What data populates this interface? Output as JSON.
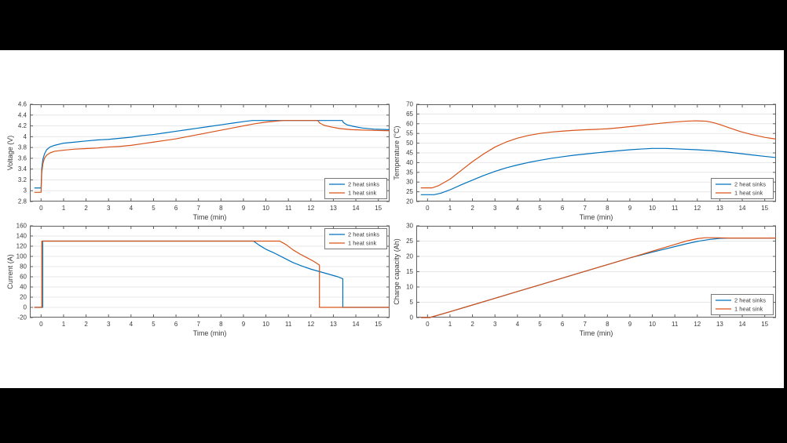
{
  "frame": {
    "background_color": "#000000",
    "canvas_color": "#ffffff"
  },
  "style": {
    "grid_color": "#e7e7e7",
    "axis_color": "#5f5f5f",
    "text_color": "#3a3a3a",
    "legend_border_color": "#777777"
  },
  "chart_data": [
    {
      "type": "line",
      "title": "",
      "xlabel": "Time (min)",
      "ylabel": "Voltage (V)",
      "xlim": [
        -0.5,
        15.5
      ],
      "ylim": [
        2.8,
        4.6
      ],
      "x_ticks": [
        0,
        1,
        2,
        3,
        4,
        5,
        6,
        7,
        8,
        9,
        10,
        11,
        12,
        13,
        14,
        15
      ],
      "y_ticks": [
        2.8,
        3,
        3.2,
        3.4,
        3.6,
        3.8,
        4,
        4.2,
        4.4,
        4.6
      ],
      "grid": "horizontal",
      "legend_position": "bottom-right",
      "series": [
        {
          "name": "2 heat sinks",
          "color": "#0072BD",
          "points": [
            [
              -0.3,
              3.05
            ],
            [
              0,
              3.05
            ],
            [
              0.03,
              3.42
            ],
            [
              0.08,
              3.58
            ],
            [
              0.15,
              3.68
            ],
            [
              0.25,
              3.76
            ],
            [
              0.4,
              3.81
            ],
            [
              0.6,
              3.84
            ],
            [
              1,
              3.88
            ],
            [
              1.5,
              3.9
            ],
            [
              2,
              3.92
            ],
            [
              2.5,
              3.94
            ],
            [
              3,
              3.95
            ],
            [
              3.5,
              3.97
            ],
            [
              4,
              3.99
            ],
            [
              4.5,
              4.02
            ],
            [
              5,
              4.04
            ],
            [
              5.5,
              4.07
            ],
            [
              6,
              4.1
            ],
            [
              6.5,
              4.13
            ],
            [
              7,
              4.16
            ],
            [
              7.5,
              4.19
            ],
            [
              8,
              4.22
            ],
            [
              8.5,
              4.25
            ],
            [
              9,
              4.28
            ],
            [
              9.4,
              4.3
            ],
            [
              13.4,
              4.3
            ],
            [
              13.45,
              4.26
            ],
            [
              13.6,
              4.22
            ],
            [
              13.9,
              4.19
            ],
            [
              14.3,
              4.16
            ],
            [
              14.8,
              4.14
            ],
            [
              15.5,
              4.13
            ]
          ]
        },
        {
          "name": "1 heat sink",
          "color": "#D95319",
          "points": [
            [
              -0.3,
              2.97
            ],
            [
              0,
              2.97
            ],
            [
              0.03,
              3.33
            ],
            [
              0.08,
              3.5
            ],
            [
              0.15,
              3.6
            ],
            [
              0.25,
              3.66
            ],
            [
              0.4,
              3.7
            ],
            [
              0.6,
              3.73
            ],
            [
              1,
              3.75
            ],
            [
              1.5,
              3.77
            ],
            [
              2,
              3.78
            ],
            [
              2.5,
              3.79
            ],
            [
              3,
              3.81
            ],
            [
              3.5,
              3.82
            ],
            [
              4,
              3.84
            ],
            [
              4.5,
              3.87
            ],
            [
              5,
              3.9
            ],
            [
              5.5,
              3.93
            ],
            [
              6,
              3.96
            ],
            [
              6.5,
              4
            ],
            [
              7,
              4.04
            ],
            [
              7.5,
              4.08
            ],
            [
              8,
              4.12
            ],
            [
              8.5,
              4.16
            ],
            [
              9,
              4.2
            ],
            [
              9.5,
              4.24
            ],
            [
              10,
              4.27
            ],
            [
              10.5,
              4.29
            ],
            [
              10.8,
              4.3
            ],
            [
              12.3,
              4.3
            ],
            [
              12.4,
              4.25
            ],
            [
              12.6,
              4.21
            ],
            [
              12.9,
              4.18
            ],
            [
              13.3,
              4.15
            ],
            [
              13.8,
              4.13
            ],
            [
              14.5,
              4.12
            ],
            [
              15.5,
              4.11
            ]
          ]
        }
      ]
    },
    {
      "type": "line",
      "title": "",
      "xlabel": "Time (min)",
      "ylabel": "Temperature (°C)",
      "xlim": [
        -0.5,
        15.5
      ],
      "ylim": [
        20,
        70
      ],
      "x_ticks": [
        0,
        1,
        2,
        3,
        4,
        5,
        6,
        7,
        8,
        9,
        10,
        11,
        12,
        13,
        14,
        15
      ],
      "y_ticks": [
        20,
        25,
        30,
        35,
        40,
        45,
        50,
        55,
        60,
        65,
        70
      ],
      "grid": "horizontal",
      "legend_position": "bottom-right",
      "series": [
        {
          "name": "2 heat sinks",
          "color": "#0072BD",
          "points": [
            [
              -0.3,
              23.5
            ],
            [
              0.3,
              23.5
            ],
            [
              0.6,
              24.3
            ],
            [
              1,
              26
            ],
            [
              1.5,
              28.6
            ],
            [
              2,
              31
            ],
            [
              2.5,
              33.4
            ],
            [
              3,
              35.5
            ],
            [
              3.5,
              37.3
            ],
            [
              4,
              38.8
            ],
            [
              4.5,
              40.1
            ],
            [
              5,
              41.2
            ],
            [
              5.5,
              42.2
            ],
            [
              6,
              43
            ],
            [
              6.5,
              43.8
            ],
            [
              7,
              44.4
            ],
            [
              7.5,
              45
            ],
            [
              8,
              45.6
            ],
            [
              8.5,
              46.1
            ],
            [
              9,
              46.6
            ],
            [
              9.5,
              47
            ],
            [
              10,
              47.3
            ],
            [
              10.6,
              47.3
            ],
            [
              11.2,
              47
            ],
            [
              12,
              46.6
            ],
            [
              12.6,
              46.2
            ],
            [
              13.2,
              45.6
            ],
            [
              13.8,
              44.8
            ],
            [
              14.4,
              44
            ],
            [
              15,
              43.2
            ],
            [
              15.5,
              42.6
            ]
          ]
        },
        {
          "name": "1 heat sink",
          "color": "#D95319",
          "points": [
            [
              -0.3,
              27
            ],
            [
              0.2,
              27
            ],
            [
              0.5,
              28.2
            ],
            [
              1,
              31.5
            ],
            [
              1.5,
              36
            ],
            [
              2,
              40.5
            ],
            [
              2.5,
              44.5
            ],
            [
              3,
              48
            ],
            [
              3.5,
              50.6
            ],
            [
              4,
              52.6
            ],
            [
              4.5,
              54
            ],
            [
              5,
              55
            ],
            [
              5.5,
              55.7
            ],
            [
              6,
              56.2
            ],
            [
              6.5,
              56.6
            ],
            [
              7,
              56.9
            ],
            [
              7.5,
              57.1
            ],
            [
              8,
              57.4
            ],
            [
              8.5,
              57.9
            ],
            [
              9,
              58.5
            ],
            [
              9.5,
              59.1
            ],
            [
              10,
              59.8
            ],
            [
              10.5,
              60.4
            ],
            [
              11,
              60.9
            ],
            [
              11.5,
              61.3
            ],
            [
              11.9,
              61.5
            ],
            [
              12.4,
              61.3
            ],
            [
              12.7,
              60.6
            ],
            [
              13,
              59.6
            ],
            [
              13.4,
              58
            ],
            [
              13.9,
              56
            ],
            [
              14.4,
              54.5
            ],
            [
              15,
              53
            ],
            [
              15.5,
              52.1
            ]
          ]
        }
      ]
    },
    {
      "type": "line",
      "title": "",
      "xlabel": "Time (min)",
      "ylabel": "Current (A)",
      "xlim": [
        -0.5,
        15.5
      ],
      "ylim": [
        -20,
        160
      ],
      "x_ticks": [
        0,
        1,
        2,
        3,
        4,
        5,
        6,
        7,
        8,
        9,
        10,
        11,
        12,
        13,
        14,
        15
      ],
      "y_ticks": [
        -20,
        0,
        20,
        40,
        60,
        80,
        100,
        120,
        140,
        160
      ],
      "grid": "horizontal",
      "legend_position": "top-right",
      "series": [
        {
          "name": "2 heat sinks",
          "color": "#0072BD",
          "points": [
            [
              -0.3,
              0
            ],
            [
              0.07,
              0
            ],
            [
              0.07,
              130
            ],
            [
              9.45,
              130
            ],
            [
              9.7,
              122
            ],
            [
              10,
              114
            ],
            [
              10.4,
              106
            ],
            [
              10.8,
              97
            ],
            [
              11.2,
              88
            ],
            [
              11.6,
              81
            ],
            [
              12,
              75
            ],
            [
              12.4,
              70
            ],
            [
              12.8,
              65
            ],
            [
              13.2,
              60
            ],
            [
              13.42,
              56
            ],
            [
              13.42,
              0
            ],
            [
              15.5,
              0
            ]
          ]
        },
        {
          "name": "1 heat sink",
          "color": "#D95319",
          "points": [
            [
              -0.3,
              0
            ],
            [
              0.03,
              0
            ],
            [
              0.03,
              130
            ],
            [
              10.62,
              130
            ],
            [
              10.9,
              123
            ],
            [
              11.2,
              113
            ],
            [
              11.5,
              105
            ],
            [
              11.8,
              98
            ],
            [
              12.1,
              91
            ],
            [
              12.38,
              83
            ],
            [
              12.38,
              0
            ],
            [
              15.5,
              0
            ]
          ]
        }
      ]
    },
    {
      "type": "line",
      "title": "",
      "xlabel": "Time (min)",
      "ylabel": "Charge capacity (Ah)",
      "xlim": [
        -0.5,
        15.5
      ],
      "ylim": [
        0,
        30
      ],
      "x_ticks": [
        0,
        1,
        2,
        3,
        4,
        5,
        6,
        7,
        8,
        9,
        10,
        11,
        12,
        13,
        14,
        15
      ],
      "y_ticks": [
        0,
        5,
        10,
        15,
        20,
        25,
        30
      ],
      "grid": "horizontal",
      "legend_position": "bottom-right",
      "series": [
        {
          "name": "2 heat sinks",
          "color": "#0072BD",
          "points": [
            [
              -0.3,
              0
            ],
            [
              0.1,
              0
            ],
            [
              1,
              1.9
            ],
            [
              2,
              4.1
            ],
            [
              3,
              6.3
            ],
            [
              4,
              8.5
            ],
            [
              5,
              10.7
            ],
            [
              6,
              12.9
            ],
            [
              7,
              15.1
            ],
            [
              8,
              17.3
            ],
            [
              9,
              19.5
            ],
            [
              10,
              21.4
            ],
            [
              10.5,
              22.3
            ],
            [
              11,
              23.2
            ],
            [
              11.5,
              24.1
            ],
            [
              12,
              24.9
            ],
            [
              12.5,
              25.5
            ],
            [
              13,
              25.9
            ],
            [
              13.4,
              26
            ],
            [
              15.5,
              26
            ]
          ]
        },
        {
          "name": "1 heat sink",
          "color": "#D95319",
          "points": [
            [
              -0.3,
              0
            ],
            [
              0.1,
              0
            ],
            [
              1,
              1.9
            ],
            [
              2,
              4.1
            ],
            [
              3,
              6.3
            ],
            [
              4,
              8.5
            ],
            [
              5,
              10.7
            ],
            [
              6,
              12.9
            ],
            [
              7,
              15.1
            ],
            [
              8,
              17.3
            ],
            [
              9,
              19.5
            ],
            [
              10,
              21.7
            ],
            [
              10.5,
              22.8
            ],
            [
              11,
              23.9
            ],
            [
              11.5,
              25
            ],
            [
              12,
              25.8
            ],
            [
              12.35,
              26.1
            ],
            [
              12.8,
              26.1
            ],
            [
              13.4,
              26
            ],
            [
              15.5,
              26
            ]
          ]
        }
      ]
    }
  ]
}
